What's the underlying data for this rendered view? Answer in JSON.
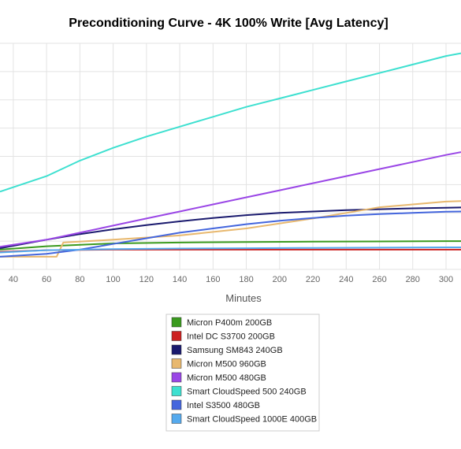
{
  "chart_data": {
    "type": "line",
    "title": "Preconditioning Curve - 4K 100% Write [Avg Latency]",
    "xlabel": "Minutes",
    "ylabel": "",
    "x_ticks": [
      40,
      60,
      80,
      100,
      120,
      140,
      160,
      180,
      200,
      220,
      240,
      260,
      280,
      300
    ],
    "xlim": [
      32,
      309
    ],
    "ylim": [
      0,
      8
    ],
    "grid": true,
    "legend_position": "bottom-center",
    "series": [
      {
        "name": "Micron P400m 200GB",
        "color": "#3a9a1e",
        "x": [
          32,
          60,
          100,
          140,
          180,
          220,
          260,
          300,
          309
        ],
        "y": [
          0.7,
          0.82,
          0.92,
          0.95,
          0.97,
          0.98,
          0.99,
          1.0,
          1.0
        ]
      },
      {
        "name": "Intel DC S3700 200GB",
        "color": "#cc2020",
        "x": [
          32,
          60,
          100,
          140,
          180,
          220,
          260,
          300,
          309
        ],
        "y": [
          0.62,
          0.68,
          0.7,
          0.7,
          0.7,
          0.7,
          0.7,
          0.7,
          0.7
        ]
      },
      {
        "name": "Samsung SM843 240GB",
        "color": "#1a1a6e",
        "x": [
          32,
          60,
          80,
          100,
          120,
          140,
          160,
          180,
          200,
          220,
          240,
          260,
          280,
          300,
          309
        ],
        "y": [
          0.75,
          1.05,
          1.25,
          1.42,
          1.57,
          1.7,
          1.82,
          1.92,
          2.0,
          2.05,
          2.1,
          2.13,
          2.16,
          2.18,
          2.19
        ]
      },
      {
        "name": "Micron M500 960GB",
        "color": "#e8b86e",
        "x": [
          32,
          60,
          66,
          70,
          100,
          140,
          180,
          220,
          240,
          260,
          280,
          300,
          309
        ],
        "y": [
          0.45,
          0.45,
          0.45,
          0.95,
          1.05,
          1.2,
          1.45,
          1.8,
          2.0,
          2.2,
          2.3,
          2.4,
          2.42
        ]
      },
      {
        "name": "Micron M500 480GB",
        "color": "#9a46e6",
        "x": [
          32,
          60,
          80,
          100,
          120,
          140,
          160,
          180,
          200,
          220,
          240,
          260,
          280,
          300,
          309
        ],
        "y": [
          0.8,
          1.05,
          1.3,
          1.55,
          1.8,
          2.05,
          2.3,
          2.55,
          2.8,
          3.05,
          3.3,
          3.55,
          3.8,
          4.05,
          4.15
        ]
      },
      {
        "name": "Smart CloudSpeed 500 240GB",
        "color": "#3ee0d0",
        "x": [
          32,
          60,
          80,
          100,
          120,
          140,
          160,
          180,
          200,
          220,
          240,
          260,
          280,
          300,
          309
        ],
        "y": [
          2.75,
          3.3,
          3.85,
          4.3,
          4.7,
          5.05,
          5.4,
          5.75,
          6.05,
          6.35,
          6.65,
          6.95,
          7.25,
          7.55,
          7.65
        ]
      },
      {
        "name": "Intel S3500 480GB",
        "color": "#4466dd",
        "x": [
          32,
          60,
          80,
          100,
          120,
          140,
          160,
          180,
          200,
          220,
          240,
          260,
          280,
          300,
          309
        ],
        "y": [
          0.45,
          0.55,
          0.7,
          0.9,
          1.1,
          1.3,
          1.45,
          1.6,
          1.72,
          1.82,
          1.9,
          1.96,
          2.0,
          2.04,
          2.05
        ]
      },
      {
        "name": "Smart CloudSpeed 1000E 400GB",
        "color": "#55aaee",
        "x": [
          32,
          60,
          100,
          140,
          180,
          220,
          260,
          300,
          309
        ],
        "y": [
          0.6,
          0.68,
          0.72,
          0.74,
          0.75,
          0.76,
          0.77,
          0.78,
          0.78
        ]
      }
    ]
  }
}
